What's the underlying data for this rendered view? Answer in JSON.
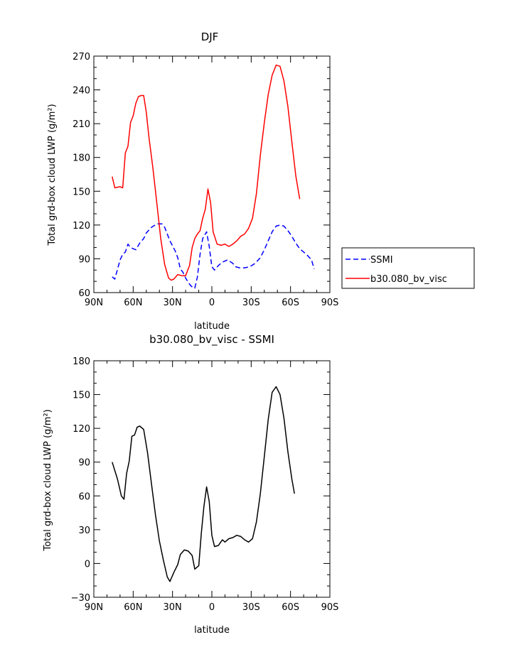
{
  "chart_data": [
    {
      "type": "line",
      "title": "DJF",
      "xlabel": "latitude",
      "ylabel": "Total grd-box cloud LWP (g/m²)",
      "xlim": [
        90,
        -90
      ],
      "ylim": [
        60,
        270
      ],
      "x_ticks": [
        90,
        60,
        30,
        0,
        -30,
        -60,
        -90
      ],
      "x_tick_labels": [
        "90N",
        "60N",
        "30N",
        "0",
        "30S",
        "60S",
        "90S"
      ],
      "y_ticks": [
        60,
        90,
        120,
        150,
        180,
        210,
        240,
        270
      ],
      "y_tick_labels": [
        "60",
        "90",
        "120",
        "150",
        "180",
        "210",
        "240",
        "270"
      ],
      "legend_position": "right",
      "series": [
        {
          "name": "SSMI",
          "color": "#0000ff",
          "style": "dashed",
          "points": [
            [
              76,
              74
            ],
            [
              74,
              72
            ],
            [
              70,
              89
            ],
            [
              68,
              94
            ],
            [
              66,
              96
            ],
            [
              64,
              103
            ],
            [
              62,
              100
            ],
            [
              58,
              98
            ],
            [
              55,
              104
            ],
            [
              52,
              108
            ],
            [
              50,
              113
            ],
            [
              46,
              118
            ],
            [
              42,
              121
            ],
            [
              38,
              121
            ],
            [
              36,
              118
            ],
            [
              32,
              106
            ],
            [
              28,
              97
            ],
            [
              26,
              91
            ],
            [
              24,
              81
            ],
            [
              22,
              78
            ],
            [
              20,
              73
            ],
            [
              18,
              69
            ],
            [
              16,
              66
            ],
            [
              14,
              64
            ],
            [
              13,
              64
            ],
            [
              11,
              74
            ],
            [
              9,
              94
            ],
            [
              7,
              108
            ],
            [
              4,
              114
            ],
            [
              2,
              101
            ],
            [
              0,
              83
            ],
            [
              -2,
              80
            ],
            [
              -5,
              84
            ],
            [
              -8,
              87
            ],
            [
              -12,
              89
            ],
            [
              -16,
              86
            ],
            [
              -18,
              83
            ],
            [
              -21,
              82
            ],
            [
              -25,
              82
            ],
            [
              -29,
              83
            ],
            [
              -33,
              86
            ],
            [
              -37,
              91
            ],
            [
              -40,
              98
            ],
            [
              -43,
              106
            ],
            [
              -46,
              114
            ],
            [
              -49,
              119
            ],
            [
              -52,
              120
            ],
            [
              -55,
              119
            ],
            [
              -58,
              115
            ],
            [
              -61,
              110
            ],
            [
              -64,
              104
            ],
            [
              -67,
              99
            ],
            [
              -70,
              96
            ],
            [
              -73,
              93
            ],
            [
              -76,
              89
            ],
            [
              -78,
              81
            ]
          ]
        },
        {
          "name": "b30.080_bv_visc",
          "color": "#ff0000",
          "style": "solid",
          "points": [
            [
              76,
              163
            ],
            [
              74,
              153
            ],
            [
              70,
              154
            ],
            [
              68,
              153
            ],
            [
              66,
              184
            ],
            [
              64,
              190
            ],
            [
              62,
              211
            ],
            [
              60,
              217
            ],
            [
              58,
              228
            ],
            [
              56,
              234
            ],
            [
              54,
              235
            ],
            [
              52,
              235
            ],
            [
              50,
              220
            ],
            [
              48,
              198
            ],
            [
              45,
              171
            ],
            [
              42,
              140
            ],
            [
              39,
              108
            ],
            [
              36,
              85
            ],
            [
              33,
              73
            ],
            [
              31,
              71
            ],
            [
              29,
              72
            ],
            [
              26,
              76
            ],
            [
              23,
              75
            ],
            [
              20,
              75
            ],
            [
              17,
              84
            ],
            [
              15,
              100
            ],
            [
              13,
              108
            ],
            [
              11,
              112
            ],
            [
              9,
              115
            ],
            [
              7,
              126
            ],
            [
              5,
              134
            ],
            [
              3,
              152
            ],
            [
              1,
              140
            ],
            [
              -1,
              114
            ],
            [
              -4,
              103
            ],
            [
              -7,
              102
            ],
            [
              -10,
              103
            ],
            [
              -13,
              101
            ],
            [
              -16,
              103
            ],
            [
              -19,
              106
            ],
            [
              -22,
              110
            ],
            [
              -25,
              112
            ],
            [
              -28,
              117
            ],
            [
              -31,
              126
            ],
            [
              -34,
              148
            ],
            [
              -37,
              182
            ],
            [
              -40,
              211
            ],
            [
              -43,
              236
            ],
            [
              -46,
              253
            ],
            [
              -49,
              262
            ],
            [
              -52,
              261
            ],
            [
              -55,
              248
            ],
            [
              -58,
              225
            ],
            [
              -61,
              194
            ],
            [
              -64,
              164
            ],
            [
              -67,
              143
            ]
          ]
        }
      ]
    },
    {
      "type": "line",
      "title": "b30.080_bv_visc - SSMI",
      "xlabel": "latitude",
      "ylabel": "Total grd-box cloud LWP (g/m²)",
      "xlim": [
        90,
        -90
      ],
      "ylim": [
        -30,
        180
      ],
      "x_ticks": [
        90,
        60,
        30,
        0,
        -30,
        -60,
        -90
      ],
      "x_tick_labels": [
        "90N",
        "60N",
        "30N",
        "0",
        "30S",
        "60S",
        "90S"
      ],
      "y_ticks": [
        -30,
        0,
        30,
        60,
        90,
        120,
        150,
        180
      ],
      "y_tick_labels": [
        "−30",
        "0",
        "30",
        "60",
        "90",
        "120",
        "150",
        "180"
      ],
      "series": [
        {
          "color": "#000000",
          "style": "solid",
          "points": [
            [
              76,
              90
            ],
            [
              72,
              75
            ],
            [
              69,
              60
            ],
            [
              67,
              57
            ],
            [
              65,
              80
            ],
            [
              63,
              91
            ],
            [
              61,
              113
            ],
            [
              59,
              114
            ],
            [
              57,
              121
            ],
            [
              55,
              122
            ],
            [
              52,
              119
            ],
            [
              49,
              98
            ],
            [
              46,
              70
            ],
            [
              43,
              43
            ],
            [
              40,
              20
            ],
            [
              37,
              3
            ],
            [
              34,
              -12
            ],
            [
              32,
              -16
            ],
            [
              29,
              -8
            ],
            [
              26,
              -1
            ],
            [
              24,
              8
            ],
            [
              21,
              12
            ],
            [
              18,
              11
            ],
            [
              15,
              7
            ],
            [
              13,
              -5
            ],
            [
              10,
              -2
            ],
            [
              8,
              27
            ],
            [
              6,
              51
            ],
            [
              4,
              68
            ],
            [
              2,
              55
            ],
            [
              0,
              25
            ],
            [
              -2,
              15
            ],
            [
              -5,
              16
            ],
            [
              -8,
              21
            ],
            [
              -10,
              19
            ],
            [
              -13,
              22
            ],
            [
              -16,
              23
            ],
            [
              -19,
              25
            ],
            [
              -22,
              24
            ],
            [
              -25,
              21
            ],
            [
              -28,
              19
            ],
            [
              -31,
              22
            ],
            [
              -34,
              37
            ],
            [
              -37,
              62
            ],
            [
              -40,
              95
            ],
            [
              -43,
              128
            ],
            [
              -46,
              152
            ],
            [
              -49,
              157
            ],
            [
              -52,
              150
            ],
            [
              -55,
              129
            ],
            [
              -58,
              99
            ],
            [
              -61,
              75
            ],
            [
              -63,
              62
            ]
          ]
        }
      ]
    }
  ]
}
